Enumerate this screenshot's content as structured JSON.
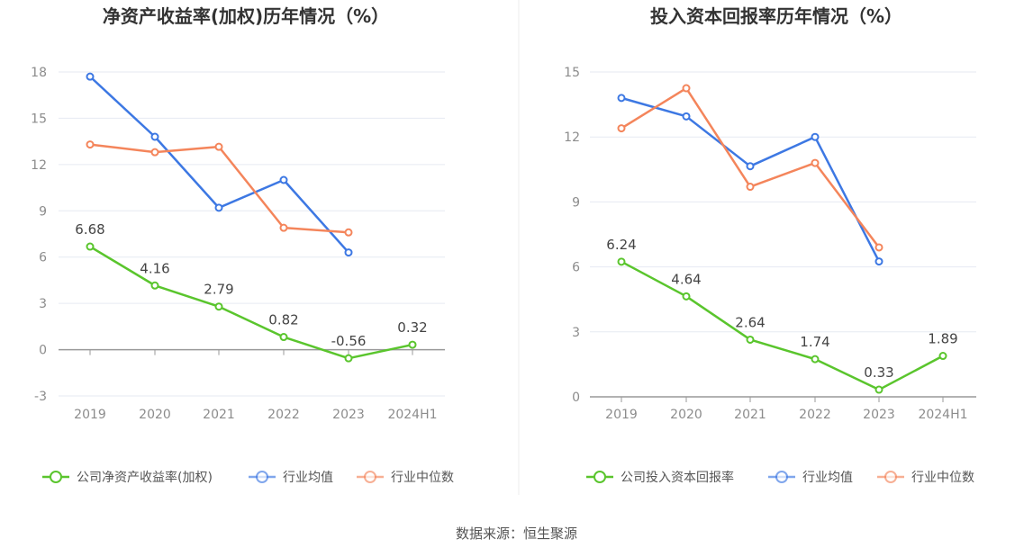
{
  "source": "数据来源：恒生聚源",
  "chart_data": [
    {
      "type": "line",
      "title": "净资产收益率(加权)历年情况（%）",
      "categories": [
        "2019",
        "2020",
        "2021",
        "2022",
        "2023",
        "2024H1"
      ],
      "ylim": [
        -3,
        18
      ],
      "yticks": [
        -3,
        0,
        3,
        6,
        9,
        12,
        15,
        18
      ],
      "grid": true,
      "legend": "bottom",
      "series": [
        {
          "name": "公司净资产收益率(加权)",
          "color": "#5ac52d",
          "labels": true,
          "values": [
            6.68,
            4.16,
            2.79,
            0.82,
            -0.56,
            0.32
          ]
        },
        {
          "name": "行业均值",
          "color": "#3d78e3",
          "labels": false,
          "values": [
            17.7,
            13.8,
            9.2,
            11.0,
            6.3,
            null
          ]
        },
        {
          "name": "行业中位数",
          "color": "#f4855b",
          "labels": false,
          "values": [
            13.3,
            12.8,
            13.15,
            7.9,
            7.6,
            null
          ]
        }
      ]
    },
    {
      "type": "line",
      "title": "投入资本回报率历年情况（%）",
      "categories": [
        "2019",
        "2020",
        "2021",
        "2022",
        "2023",
        "2024H1"
      ],
      "ylim": [
        0,
        15
      ],
      "yticks": [
        0,
        3,
        6,
        9,
        12,
        15
      ],
      "grid": true,
      "legend": "bottom",
      "series": [
        {
          "name": "公司投入资本回报率",
          "color": "#5ac52d",
          "labels": true,
          "values": [
            6.24,
            4.64,
            2.64,
            1.74,
            0.33,
            1.89
          ]
        },
        {
          "name": "行业均值",
          "color": "#3d78e3",
          "labels": false,
          "values": [
            13.8,
            12.95,
            10.65,
            12.0,
            6.25,
            null
          ]
        },
        {
          "name": "行业中位数",
          "color": "#f4855b",
          "labels": false,
          "values": [
            12.4,
            14.25,
            9.7,
            10.8,
            6.9,
            null
          ]
        }
      ]
    }
  ]
}
